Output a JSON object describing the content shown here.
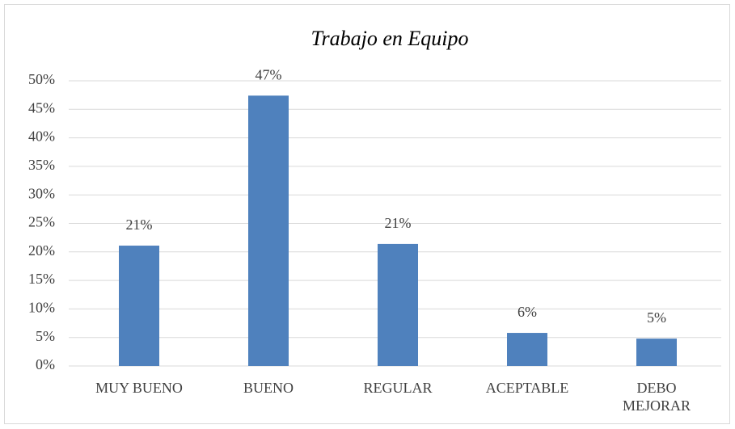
{
  "chart_data": {
    "type": "bar",
    "title": "Trabajo en Equipo",
    "categories": [
      "MUY BUENO",
      "BUENO",
      "REGULAR",
      "ACEPTABLE",
      "DEBO MEJORAR"
    ],
    "values": [
      21.1,
      47.4,
      21.4,
      5.8,
      4.8
    ],
    "value_labels": [
      "21%",
      "47%",
      "21%",
      "6%",
      "5%"
    ],
    "color": "#4f81bd",
    "ylim": [
      0,
      50
    ],
    "yticks": [
      {
        "value": 0,
        "label": "0%"
      },
      {
        "value": 5,
        "label": "5%"
      },
      {
        "value": 10,
        "label": "10%"
      },
      {
        "value": 15,
        "label": "15%"
      },
      {
        "value": 20,
        "label": "20%"
      },
      {
        "value": 25,
        "label": "25%"
      },
      {
        "value": 30,
        "label": "30%"
      },
      {
        "value": 35,
        "label": "35%"
      },
      {
        "value": 40,
        "label": "40%"
      },
      {
        "value": 45,
        "label": "45%"
      },
      {
        "value": 50,
        "label": "50%"
      }
    ],
    "grid": true
  }
}
